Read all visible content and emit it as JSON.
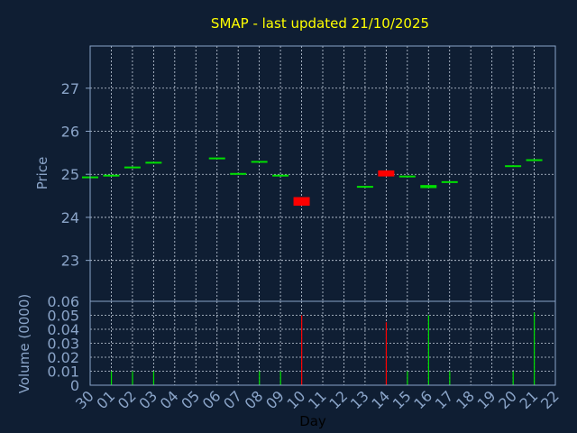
{
  "chart_data": {
    "type": "candlestick",
    "title": "SMAP - last updated 21/10/2025",
    "xlabel": "Day",
    "ylabel_price": "Price",
    "ylabel_volume": "Volume (0000)",
    "x_ticks": [
      "30",
      "01",
      "02",
      "03",
      "04",
      "05",
      "06",
      "07",
      "08",
      "09",
      "10",
      "11",
      "12",
      "13",
      "14",
      "15",
      "16",
      "17",
      "18",
      "19",
      "20",
      "21",
      "22"
    ],
    "price_ylim": [
      22.05,
      27.98
    ],
    "price_yticks": [
      23,
      24,
      25,
      26,
      27
    ],
    "volume_ylim": [
      0,
      0.06
    ],
    "volume_yticks": [
      "0",
      "0.01",
      "0.02",
      "0.03",
      "0.04",
      "0.05",
      "0.06"
    ],
    "grid": true,
    "colors": {
      "background": "#0f1e33",
      "axis": "#8aa4c8",
      "grid": "#c8d2e0",
      "title": "#ffff00",
      "up": "#00e000",
      "down": "#ff0000"
    },
    "candles": [
      {
        "day": "30",
        "open": 24.93,
        "close": 24.95,
        "volume": 0.0
      },
      {
        "day": "01",
        "open": 24.97,
        "close": 24.99,
        "volume": 0.01
      },
      {
        "day": "02",
        "open": 25.16,
        "close": 25.18,
        "volume": 0.01
      },
      {
        "day": "03",
        "open": 25.27,
        "close": 25.29,
        "volume": 0.01
      },
      {
        "day": "06",
        "open": 25.37,
        "close": 25.39,
        "volume": 0.0
      },
      {
        "day": "07",
        "open": 25.01,
        "close": 25.03,
        "volume": 0.0
      },
      {
        "day": "08",
        "open": 25.29,
        "close": 25.31,
        "volume": 0.01
      },
      {
        "day": "09",
        "open": 24.97,
        "close": 24.99,
        "volume": 0.01
      },
      {
        "day": "10",
        "open": 24.47,
        "close": 24.27,
        "volume": 0.05
      },
      {
        "day": "13",
        "open": 24.71,
        "close": 24.73,
        "volume": 0.0
      },
      {
        "day": "14",
        "open": 25.09,
        "close": 24.95,
        "volume": 0.045
      },
      {
        "day": "15",
        "open": 24.95,
        "close": 24.97,
        "volume": 0.01
      },
      {
        "day": "16",
        "open": 24.68,
        "close": 24.75,
        "volume": 0.05
      },
      {
        "day": "17",
        "open": 24.82,
        "close": 24.84,
        "volume": 0.01
      },
      {
        "day": "20",
        "open": 25.19,
        "close": 25.21,
        "volume": 0.01
      },
      {
        "day": "21",
        "open": 25.33,
        "close": 25.35,
        "volume": 0.052
      }
    ]
  }
}
